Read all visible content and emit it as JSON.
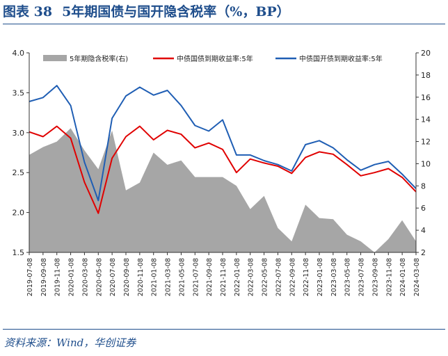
{
  "figure": {
    "label": "图表 38",
    "title": "5年期国债与国开隐含税率（%，BP）",
    "source": "资料来源：Wind，华创证券"
  },
  "chart_data": {
    "type": "line",
    "legend_position": "top",
    "grid": false,
    "x": [
      "2019-07-08",
      "2019-09-08",
      "2019-11-08",
      "2020-01-08",
      "2020-03-08",
      "2020-05-08",
      "2020-07-08",
      "2020-09-08",
      "2020-11-08",
      "2021-01-08",
      "2021-03-08",
      "2021-05-08",
      "2021-07-08",
      "2021-09-08",
      "2021-11-08",
      "2022-01-08",
      "2022-03-08",
      "2022-05-08",
      "2022-07-08",
      "2022-09-08",
      "2022-11-08",
      "2023-01-08",
      "2023-03-08",
      "2023-05-08",
      "2023-07-08",
      "2023-09-08",
      "2023-11-08",
      "2024-01-08",
      "2024-03-08"
    ],
    "y_left": {
      "min": 1.5,
      "max": 4.0,
      "ticks": [
        "1.5",
        "2.0",
        "2.5",
        "3.0",
        "3.5",
        "4.0"
      ]
    },
    "y_right": {
      "min": 2,
      "max": 20,
      "ticks": [
        "2",
        "4",
        "6",
        "8",
        "10",
        "12",
        "14",
        "16",
        "18",
        "20"
      ]
    },
    "series": [
      {
        "name": "5年期隐含税率(右)",
        "type": "area",
        "axis": "right",
        "color": "#a6a6a6",
        "values": [
          10.8,
          11.5,
          12.0,
          13.2,
          11.2,
          9.5,
          13.0,
          7.6,
          8.3,
          11.0,
          9.9,
          10.3,
          8.8,
          8.8,
          8.8,
          8.0,
          5.9,
          7.1,
          4.2,
          3.0,
          6.3,
          5.1,
          5.0,
          3.6,
          3.0,
          2.0,
          3.2,
          4.9,
          3.0
        ]
      },
      {
        "name": "中债国债到期收益率:5年",
        "type": "line",
        "axis": "left",
        "color": "#e00000",
        "values": [
          3.01,
          2.95,
          3.08,
          2.93,
          2.38,
          1.99,
          2.68,
          2.95,
          3.08,
          2.91,
          3.03,
          2.98,
          2.81,
          2.87,
          2.79,
          2.5,
          2.67,
          2.62,
          2.58,
          2.49,
          2.69,
          2.76,
          2.73,
          2.6,
          2.46,
          2.5,
          2.55,
          2.44,
          2.26
        ]
      },
      {
        "name": "中债国开债到期收益率:5年",
        "type": "line",
        "axis": "left",
        "color": "#1f5eb4",
        "values": [
          3.39,
          3.44,
          3.59,
          3.34,
          2.63,
          2.15,
          3.18,
          3.46,
          3.57,
          3.47,
          3.53,
          3.34,
          3.09,
          3.02,
          3.16,
          2.72,
          2.72,
          2.65,
          2.6,
          2.52,
          2.85,
          2.9,
          2.81,
          2.66,
          2.53,
          2.6,
          2.64,
          2.48,
          2.3
        ]
      }
    ]
  }
}
